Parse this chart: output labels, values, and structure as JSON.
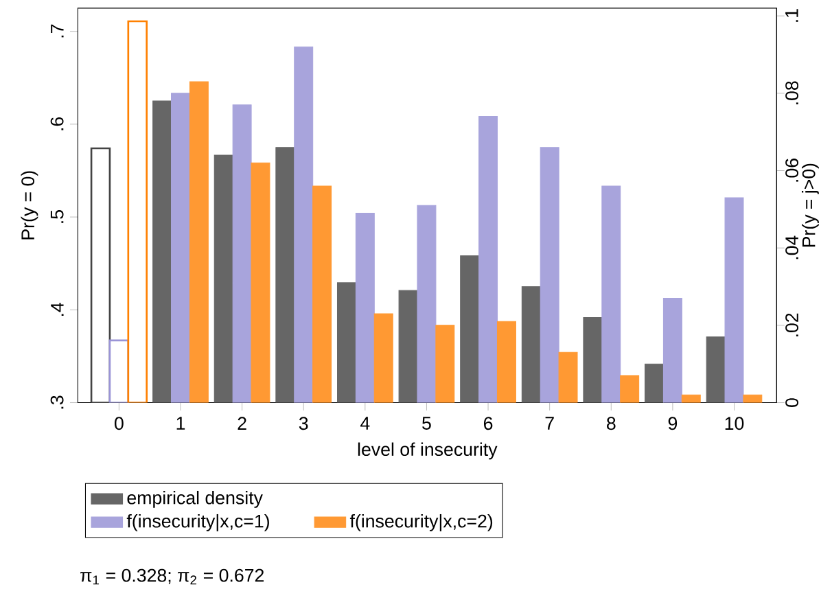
{
  "chart_data": {
    "type": "bar",
    "xlabel": "level of insecurity",
    "ylabel": "Pr(y = 0)",
    "y2label": "Pr(y = j>0)",
    "categories": [
      "0",
      "1",
      "2",
      "3",
      "4",
      "5",
      "6",
      "7",
      "8",
      "9",
      "10"
    ],
    "series": [
      {
        "name": "empirical density",
        "color": "#666666",
        "axis": "y2",
        "values": [
          null,
          0.078,
          0.064,
          0.066,
          0.031,
          0.029,
          0.038,
          0.03,
          0.022,
          0.01,
          0.017
        ]
      },
      {
        "name": "f(insecurity|x,c=1)",
        "color": "#a8a4dc",
        "axis": "y2",
        "values": [
          null,
          0.08,
          0.077,
          0.092,
          0.049,
          0.051,
          0.074,
          0.066,
          0.056,
          0.027,
          0.053
        ]
      },
      {
        "name": "f(insecurity|x,c=2)",
        "color": "#ff9933",
        "axis": "y2",
        "values": [
          null,
          0.083,
          0.062,
          0.056,
          0.023,
          0.02,
          0.021,
          0.013,
          0.007,
          0.002,
          0.002
        ]
      },
      {
        "color": "#444444",
        "axis": "y",
        "values": [
          0.574,
          null,
          null,
          null,
          null,
          null,
          null,
          null,
          null,
          null,
          null
        ]
      },
      {
        "color": "#9a94d6",
        "axis": "y",
        "values": [
          0.367,
          null,
          null,
          null,
          null,
          null,
          null,
          null,
          null,
          null,
          null
        ]
      },
      {
        "color": "#ff8000",
        "axis": "y",
        "values": [
          0.711,
          null,
          null,
          null,
          null,
          null,
          null,
          null,
          null,
          null,
          null
        ]
      }
    ],
    "ylim": [
      0.3,
      0.725
    ],
    "yticks": [
      {
        "value": 0.3,
        "label": ".3"
      },
      {
        "value": 0.4,
        "label": ".4"
      },
      {
        "value": 0.5,
        "label": ".5"
      },
      {
        "value": 0.6,
        "label": ".6"
      },
      {
        "value": 0.7,
        "label": ".7"
      }
    ],
    "y2lim": [
      0,
      0.102
    ],
    "y2ticks": [
      0,
      {
        "value": 0.02,
        "label": ".02"
      },
      {
        "value": 0.04,
        "label": ".04"
      },
      {
        "value": 0.06,
        "label": ".06"
      },
      {
        "value": 0.08,
        "label": ".08"
      },
      {
        "value": 0.1,
        "label": ".1"
      }
    ],
    "legend": "bottom",
    "annotations": [
      "π$_{1}$ = 0.328;  π$_{2}$ = 0.672"
    ]
  }
}
